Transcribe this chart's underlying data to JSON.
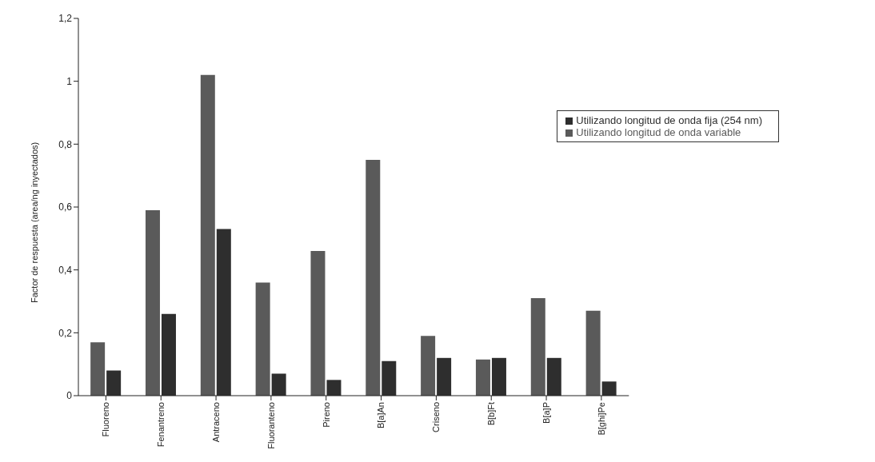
{
  "chart_data": {
    "type": "bar",
    "ylabel": "Factor de respuesta (area/ng inyectados)",
    "categories": [
      "Fluoreno",
      "Fenantreno",
      "Antraceno",
      "Fluoranteno",
      "Pireno",
      "B[a]An",
      "Criseno",
      "B[b]Ft",
      "B[a]P",
      "B[ghi]Pe"
    ],
    "series": [
      {
        "name": "Utilizando longitud de onda variable",
        "color": "#5a5a5a",
        "values": [
          0.17,
          0.59,
          1.02,
          0.36,
          0.46,
          0.75,
          0.19,
          0.115,
          0.31,
          0.27
        ]
      },
      {
        "name": "Utilizando longitud de onda fija (254 nm)",
        "color": "#2e2e2e",
        "values": [
          0.08,
          0.26,
          0.53,
          0.07,
          0.05,
          0.11,
          0.12,
          0.12,
          0.12,
          0.045
        ]
      }
    ],
    "ylim": [
      0,
      1.2
    ],
    "yticks": [
      {
        "value": 0,
        "label": "0"
      },
      {
        "value": 0.2,
        "label": "0,2"
      },
      {
        "value": 0.4,
        "label": "0,4"
      },
      {
        "value": 0.6,
        "label": "0,6"
      },
      {
        "value": 0.8,
        "label": "0,8"
      },
      {
        "value": 1,
        "label": "1"
      },
      {
        "value": 1.2,
        "label": "1,2"
      }
    ],
    "legend": "top right"
  }
}
